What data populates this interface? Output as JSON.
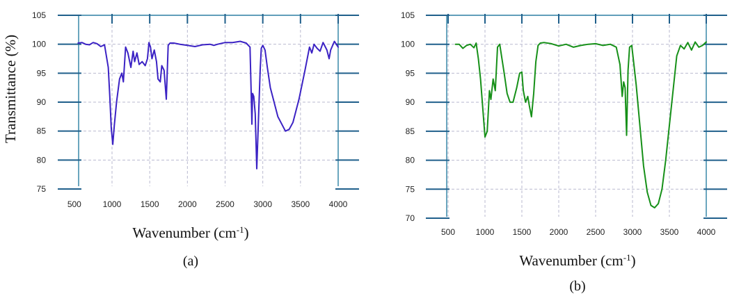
{
  "ylabel": "Transmittance (%)",
  "chart_data": [
    {
      "type": "line",
      "panel_label": "(a)",
      "xlabel": "Wavenumber (cm",
      "xlabel_sup": "-1",
      "xlabel_end": ")",
      "xlim": [
        550,
        4000
      ],
      "ylim": [
        75,
        105
      ],
      "x_ticks": [
        500,
        1000,
        1500,
        2000,
        2500,
        3000,
        3500,
        4000
      ],
      "y_ticks": [
        75,
        80,
        85,
        90,
        95,
        100,
        105
      ],
      "grid": true,
      "colors": {
        "line": "#3b22c4",
        "frame": "#2b7fa3",
        "ticks": "#1f5f8b"
      },
      "series": [
        {
          "x": [
            550,
            600,
            650,
            700,
            750,
            800,
            850,
            900,
            950,
            970,
            990,
            1010,
            1030,
            1060,
            1100,
            1130,
            1150,
            1180,
            1210,
            1250,
            1280,
            1300,
            1330,
            1360,
            1400,
            1440,
            1470,
            1490,
            1510,
            1530,
            1560,
            1590,
            1610,
            1640,
            1660,
            1690,
            1720,
            1745,
            1770,
            1790,
            1820,
            1900,
            2000,
            2100,
            2200,
            2300,
            2350,
            2400,
            2500,
            2600,
            2700,
            2780,
            2830,
            2845,
            2855,
            2865,
            2880,
            2900,
            2920,
            2935,
            2950,
            2965,
            2980,
            3000,
            3030,
            3060,
            3100,
            3200,
            3300,
            3350,
            3400,
            3480,
            3560,
            3620,
            3650,
            3680,
            3720,
            3760,
            3800,
            3850,
            3880,
            3900,
            3950,
            4000
          ],
          "y": [
            100.2,
            100.3,
            100.0,
            99.9,
            100.3,
            100.1,
            99.6,
            99.9,
            96.0,
            91.0,
            85.5,
            82.7,
            86.0,
            90.0,
            94.0,
            95.0,
            93.5,
            99.5,
            98.5,
            96.0,
            98.8,
            97.0,
            98.5,
            96.5,
            97.0,
            96.3,
            97.5,
            100.3,
            99.5,
            97.5,
            99.0,
            97.0,
            94.0,
            93.5,
            96.3,
            95.5,
            90.5,
            99.8,
            100.2,
            100.2,
            100.2,
            100.0,
            99.8,
            99.6,
            99.9,
            100.0,
            99.8,
            100.0,
            100.3,
            100.3,
            100.5,
            100.2,
            99.5,
            92.0,
            86.2,
            91.5,
            91.0,
            88.0,
            78.5,
            84.0,
            90.0,
            95.5,
            99.3,
            99.8,
            99.0,
            96.0,
            92.5,
            87.5,
            85.0,
            85.3,
            86.5,
            90.5,
            95.5,
            99.5,
            98.5,
            100.0,
            99.3,
            98.8,
            100.3,
            99.0,
            97.5,
            99.0,
            100.5,
            99.5
          ]
        }
      ]
    },
    {
      "type": "line",
      "panel_label": "(b)",
      "xlabel": "Wavenumber (cm",
      "xlabel_sup": "-1",
      "xlabel_end": ")",
      "xlim": [
        400,
        4000
      ],
      "ylim": [
        70,
        105
      ],
      "x_ticks": [
        500,
        1000,
        1500,
        2000,
        2500,
        3000,
        3500,
        4000
      ],
      "y_ticks": [
        70,
        75,
        80,
        85,
        90,
        95,
        100,
        105
      ],
      "grid": true,
      "colors": {
        "line": "#169018",
        "frame": "#2b7fa3",
        "ticks": "#1f5f8b"
      },
      "series": [
        {
          "x": [
            600,
            650,
            700,
            750,
            800,
            850,
            880,
            910,
            940,
            970,
            1000,
            1030,
            1060,
            1080,
            1110,
            1140,
            1170,
            1200,
            1230,
            1260,
            1300,
            1340,
            1380,
            1430,
            1470,
            1500,
            1520,
            1550,
            1580,
            1600,
            1630,
            1660,
            1690,
            1720,
            1750,
            1800,
            1900,
            2000,
            2100,
            2200,
            2300,
            2400,
            2500,
            2600,
            2700,
            2780,
            2830,
            2860,
            2880,
            2900,
            2920,
            2940,
            2960,
            2990,
            3010,
            3050,
            3100,
            3150,
            3200,
            3250,
            3300,
            3350,
            3400,
            3450,
            3500,
            3550,
            3600,
            3650,
            3700,
            3750,
            3800,
            3850,
            3900,
            3950,
            4000
          ],
          "y": [
            100.0,
            100.0,
            99.3,
            99.8,
            100.0,
            99.4,
            100.2,
            97.5,
            94.0,
            89.0,
            84.0,
            85.0,
            92.0,
            90.5,
            94.0,
            92.0,
            99.5,
            100.0,
            97.5,
            95.0,
            91.5,
            90.0,
            90.0,
            92.5,
            95.0,
            95.2,
            92.0,
            90.0,
            91.0,
            89.5,
            87.5,
            91.5,
            97.0,
            99.8,
            100.2,
            100.3,
            100.1,
            99.7,
            100.0,
            99.5,
            99.8,
            100.0,
            100.1,
            99.8,
            100.0,
            99.5,
            96.5,
            91.0,
            93.5,
            92.5,
            84.3,
            95.5,
            99.5,
            99.8,
            97.5,
            93.0,
            86.0,
            79.0,
            74.5,
            72.2,
            71.8,
            72.5,
            75.0,
            80.0,
            86.0,
            92.0,
            98.0,
            99.8,
            99.2,
            100.3,
            99.0,
            100.4,
            99.5,
            99.8,
            100.4
          ]
        }
      ]
    }
  ]
}
